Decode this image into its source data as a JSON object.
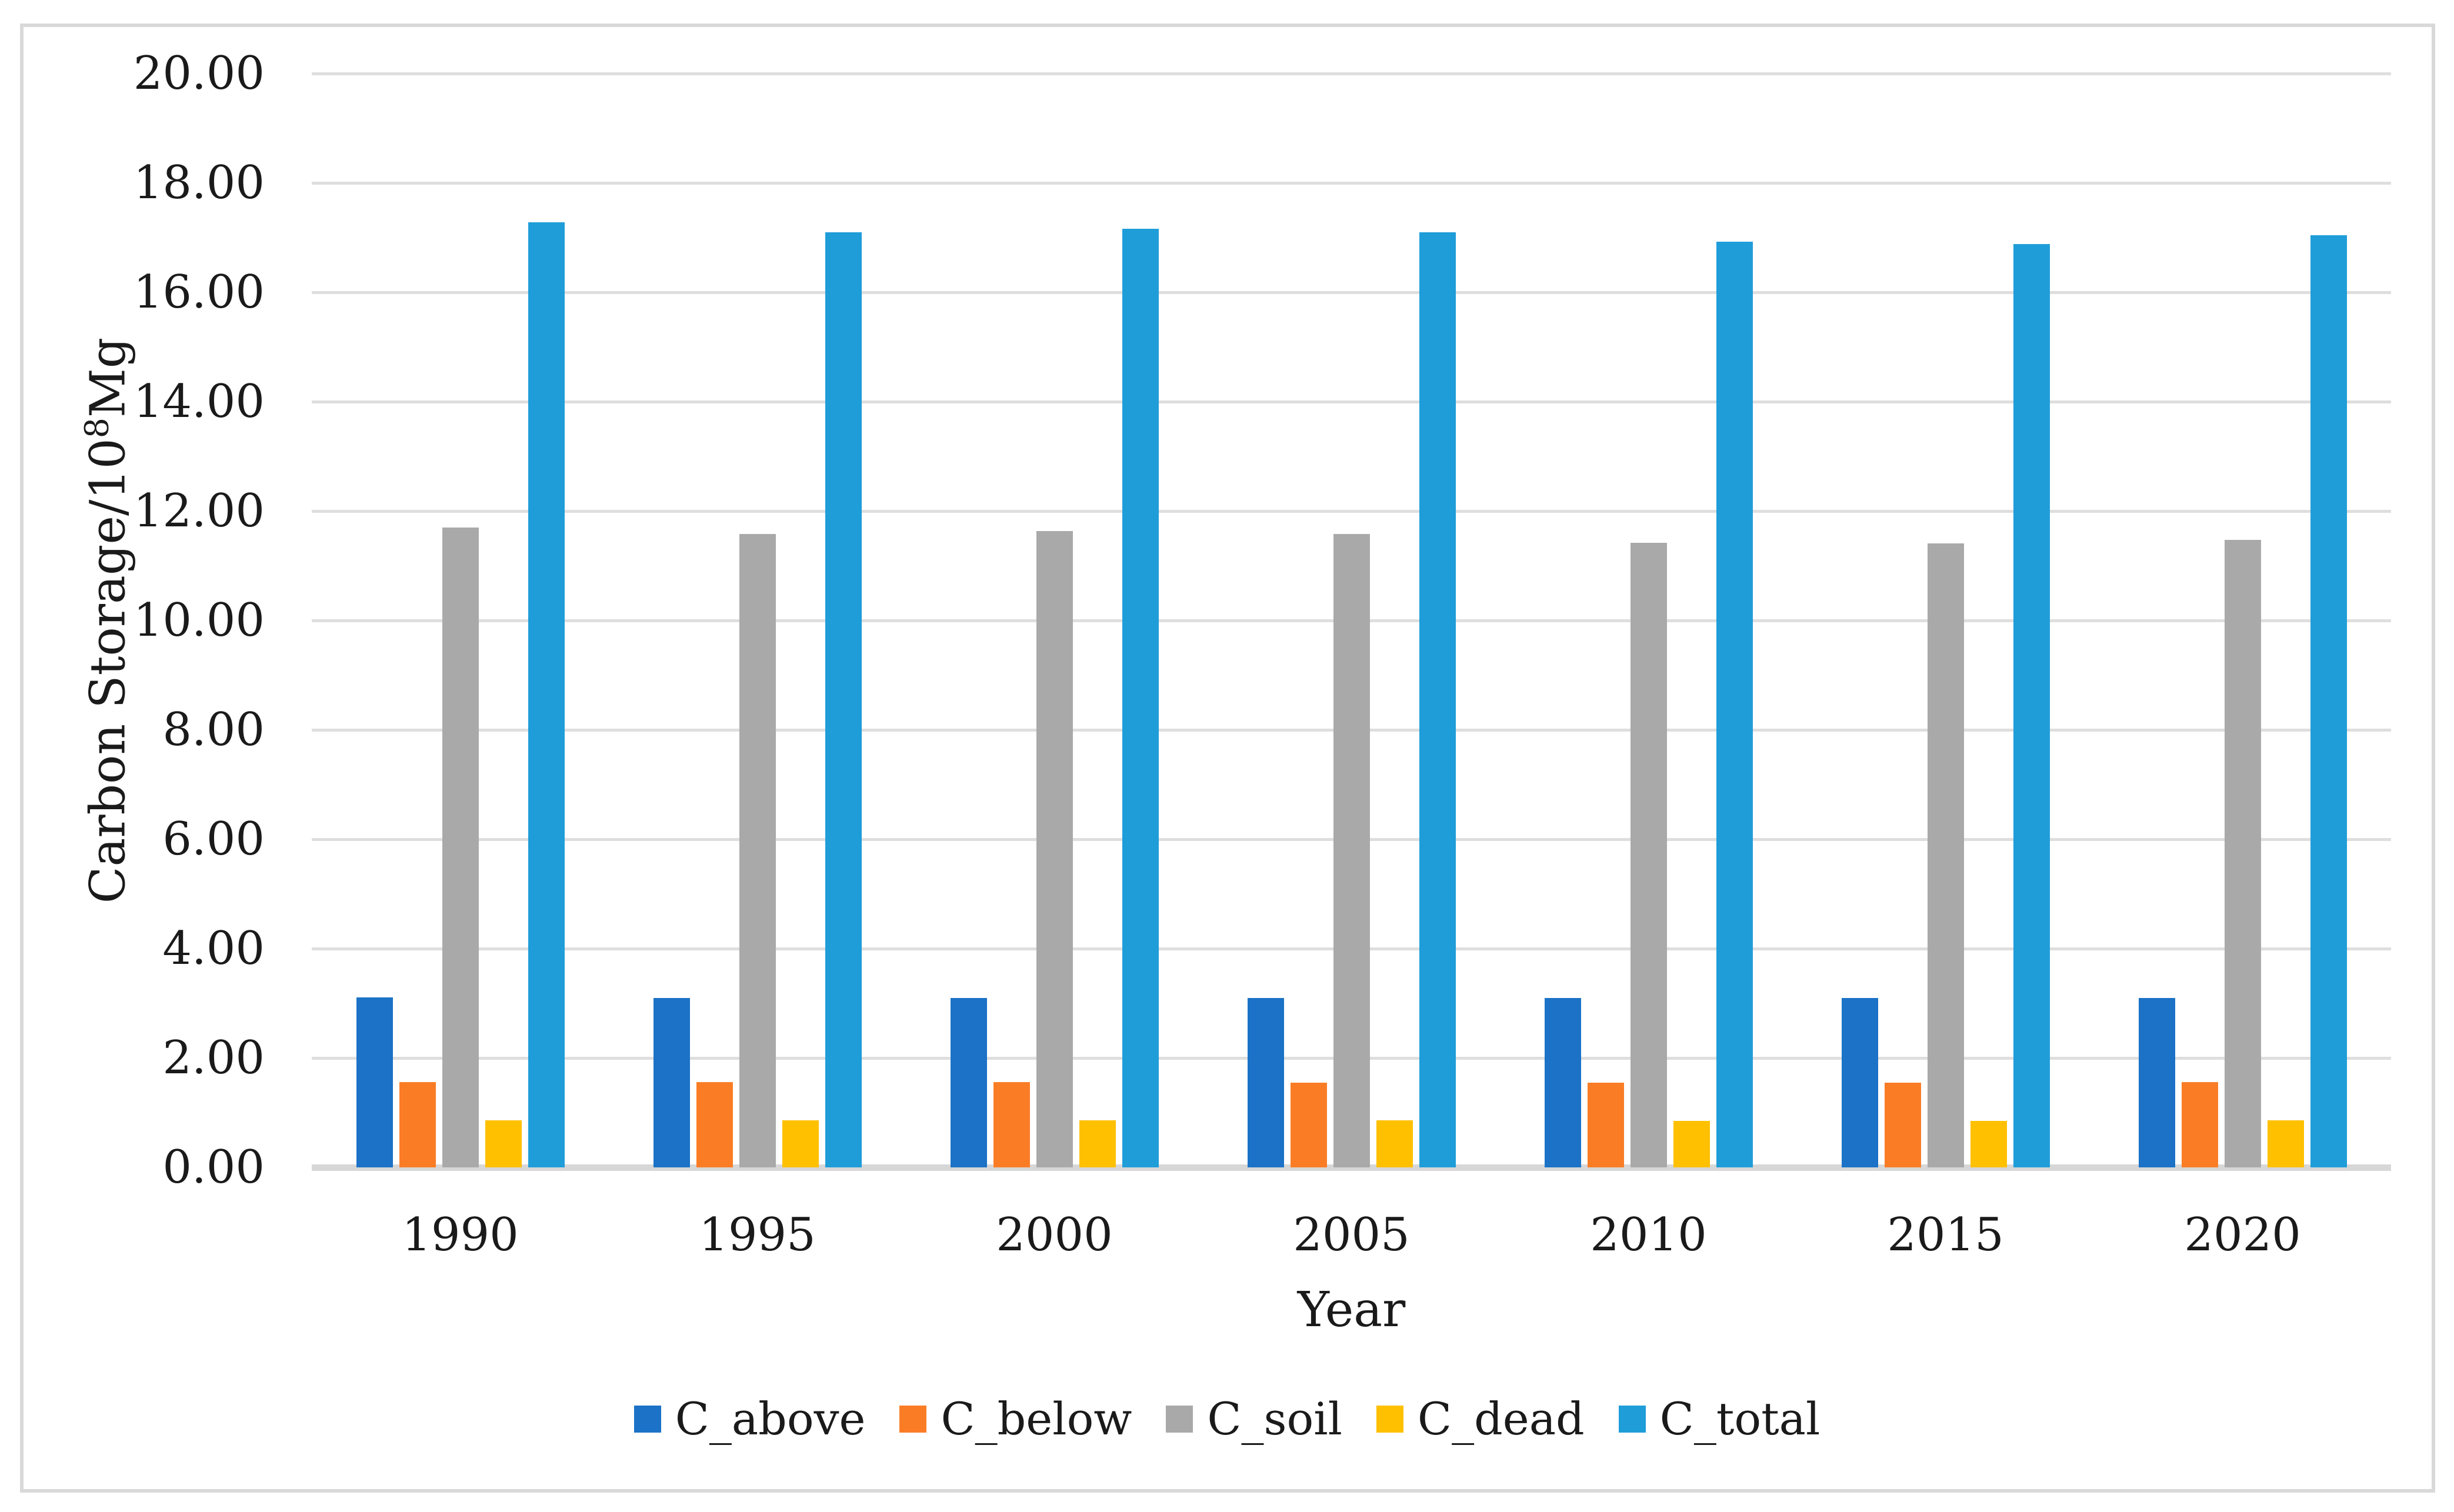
{
  "chart_data": {
    "type": "bar",
    "title": "",
    "categories": [
      "1990",
      "1995",
      "2000",
      "2005",
      "2010",
      "2015",
      "2020"
    ],
    "series": [
      {
        "name": "C_above",
        "color": "#1b72c6",
        "values": [
          3.11,
          3.1,
          3.1,
          3.1,
          3.1,
          3.1,
          3.1
        ]
      },
      {
        "name": "C_below",
        "color": "#fa7d26",
        "values": [
          1.56,
          1.56,
          1.56,
          1.55,
          1.55,
          1.55,
          1.56
        ]
      },
      {
        "name": "C_soil",
        "color": "#a9a9a9",
        "values": [
          11.7,
          11.58,
          11.64,
          11.58,
          11.42,
          11.41,
          11.47
        ]
      },
      {
        "name": "C_dead",
        "color": "#ffc000",
        "values": [
          0.86,
          0.86,
          0.86,
          0.86,
          0.85,
          0.85,
          0.86
        ]
      },
      {
        "name": "C_total",
        "color": "#1f9dd9",
        "values": [
          17.28,
          17.1,
          17.16,
          17.1,
          16.93,
          16.88,
          17.04
        ]
      }
    ],
    "xlabel": "Year",
    "ylabel": "Carbon Storage/10⁸Mg",
    "ylabel_parts": {
      "prefix": "Carbon Storage/10",
      "sup": "8",
      "suffix": "Mg"
    },
    "y_ticks": [
      "20.00",
      "18.00",
      "16.00",
      "14.00",
      "12.00",
      "10.00",
      "8.00",
      "6.00",
      "4.00",
      "2.00",
      "0.00"
    ],
    "ylim": [
      0,
      20
    ],
    "y_tick_step": 2,
    "grid": true,
    "gridline_color": "#dedede",
    "axis_line_color": "#d7d7d7",
    "legend_position": "bottom",
    "legend_labels": [
      "C_above",
      "C_below",
      "C_soil",
      "C_dead",
      "C_total"
    ]
  }
}
